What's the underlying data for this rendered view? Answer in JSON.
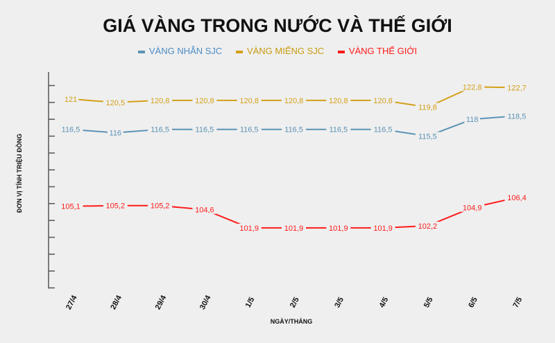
{
  "chart_data": {
    "type": "line",
    "title": "GIÁ VÀNG TRONG NƯỚC VÀ THẾ GIỚI",
    "xlabel": "NGÀY/THÁNG",
    "ylabel": "ĐƠN VỊ TÍNH TRIỆU ĐỒNG",
    "categories": [
      "27/4",
      "28/4",
      "29/4",
      "30/4",
      "1/5",
      "2/5",
      "3/5",
      "4/5",
      "5/5",
      "6/5",
      "7/5"
    ],
    "ylim": [
      93,
      125
    ],
    "yticks": [
      95,
      100,
      105,
      110,
      115,
      120,
      125
    ],
    "grid": true,
    "legend": "top-center",
    "series": [
      {
        "name": "VÀNG NHẪN SJC",
        "color": "#5b93b5",
        "values": [
          116.5,
          116,
          116.5,
          116.5,
          116.5,
          116.5,
          116.5,
          116.5,
          115.5,
          118,
          118.5
        ],
        "labels": [
          "116,5",
          "116",
          "116,5",
          "116,5",
          "116,5",
          "116,5",
          "116,5",
          "116,5",
          "115,5",
          "118",
          "118,5"
        ]
      },
      {
        "name": "VÀNG MIẾNG SJC",
        "color": "#d4a017",
        "values": [
          121,
          120.5,
          120.8,
          120.8,
          120.8,
          120.8,
          120.8,
          120.8,
          119.8,
          122.8,
          122.7
        ],
        "labels": [
          "121",
          "120,5",
          "120,8",
          "120,8",
          "120,8",
          "120,8",
          "120,8",
          "120,8",
          "119,8",
          "122,8",
          "122,7"
        ]
      },
      {
        "name": "VÀNG THẾ GIỚI",
        "color": "#ff1a1a",
        "values": [
          105.1,
          105.2,
          105.2,
          104.6,
          101.9,
          101.9,
          101.9,
          101.9,
          102.2,
          104.9,
          106.4
        ],
        "labels": [
          "105,1",
          "105,2",
          "105,2",
          "104,6",
          "101,9",
          "101,9",
          "101,9",
          "101,9",
          "102,2",
          "104,9",
          "106,4"
        ]
      }
    ]
  }
}
